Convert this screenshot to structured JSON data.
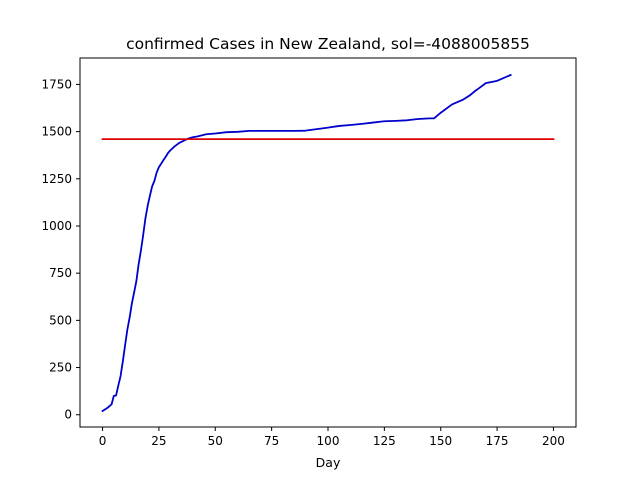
{
  "chart_data": {
    "type": "line",
    "title": "confirmed Cases in New Zealand, sol=-4088005855",
    "xlabel": "Day",
    "ylabel": "",
    "xlim": [
      -10,
      210
    ],
    "ylim": [
      -65,
      1890
    ],
    "xticks": [
      0,
      25,
      50,
      75,
      100,
      125,
      150,
      175,
      200
    ],
    "xtick_labels": [
      "0",
      "25",
      "50",
      "75",
      "100",
      "125",
      "150",
      "175",
      "200"
    ],
    "yticks": [
      0,
      250,
      500,
      750,
      1000,
      1250,
      1500,
      1750
    ],
    "ytick_labels": [
      "0",
      "250",
      "500",
      "750",
      "1000",
      "1250",
      "1500",
      "1750"
    ],
    "grid": false,
    "series": [
      {
        "color": "#0000cc",
        "x": [
          0,
          2,
          4,
          5,
          6,
          7,
          8,
          9,
          10,
          11,
          12,
          13,
          14,
          15,
          16,
          17,
          18,
          19,
          20,
          21,
          22,
          23,
          24,
          25,
          26,
          27,
          28,
          29,
          30,
          32,
          34,
          36,
          38,
          40,
          42,
          44,
          46,
          48,
          50,
          55,
          60,
          65,
          70,
          75,
          80,
          85,
          90,
          95,
          100,
          105,
          110,
          115,
          120,
          125,
          130,
          135,
          140,
          145,
          147,
          150,
          155,
          160,
          163,
          165,
          167,
          170,
          175,
          181
        ],
        "y": [
          20,
          35,
          55,
          100,
          102,
          155,
          205,
          283,
          368,
          451,
          514,
          589,
          647,
          708,
          797,
          868,
          950,
          1039,
          1106,
          1160,
          1210,
          1239,
          1283,
          1312,
          1330,
          1349,
          1366,
          1386,
          1400,
          1422,
          1440,
          1452,
          1463,
          1470,
          1474,
          1480,
          1486,
          1488,
          1490,
          1497,
          1499,
          1504,
          1504,
          1504,
          1504,
          1504,
          1505,
          1513,
          1521,
          1530,
          1535,
          1541,
          1548,
          1555,
          1557,
          1560,
          1567,
          1570,
          1570,
          1600,
          1644,
          1670,
          1693,
          1713,
          1730,
          1757,
          1769,
          1800
        ]
      },
      {
        "color": "#dd0000",
        "x": [
          0,
          200
        ],
        "y": [
          1460,
          1460
        ]
      }
    ]
  }
}
